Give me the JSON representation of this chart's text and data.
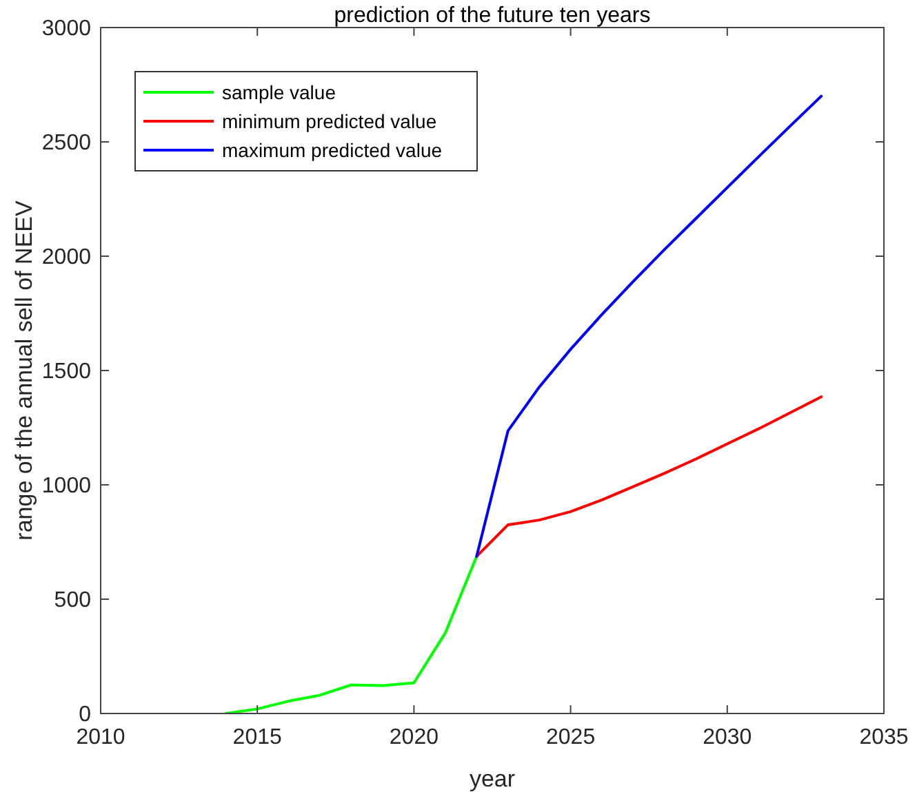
{
  "chart_data": {
    "type": "line",
    "title": "prediction of the future ten years",
    "xlabel": "year",
    "ylabel": "range of the annual sell of NEEV",
    "xlim": [
      2010,
      2035
    ],
    "xticks": [
      2010,
      2015,
      2020,
      2025,
      2030,
      2035
    ],
    "ylim": [
      0,
      3000
    ],
    "yticks": [
      0,
      500,
      1000,
      1500,
      2000,
      2500,
      3000
    ],
    "legend": "top left",
    "grid": false,
    "marker": "none",
    "line_style": "solid",
    "series": [
      {
        "name": "sample value",
        "color": "#00ff00",
        "x": [
          2014,
          2015,
          2016,
          2017,
          2018,
          2019,
          2020,
          2021,
          2022
        ],
        "values": [
          0,
          20,
          54,
          80,
          125,
          122,
          134,
          352,
          687
        ]
      },
      {
        "name": "minimum predicted value",
        "color": "#ff0000",
        "x": [
          2022,
          2023,
          2024,
          2025,
          2026,
          2027,
          2028,
          2029,
          2030,
          2031,
          2032,
          2033
        ],
        "values": [
          687,
          825,
          846,
          883,
          934,
          992,
          1051,
          1113,
          1179,
          1245,
          1315,
          1385
        ]
      },
      {
        "name": "maximum predicted value",
        "color": "#0000ff",
        "x": [
          2022,
          2023,
          2024,
          2025,
          2026,
          2027,
          2028,
          2029,
          2030,
          2031,
          2032,
          2033
        ],
        "values": [
          687,
          1236,
          1428,
          1593,
          1745,
          1890,
          2030,
          2165,
          2300,
          2435,
          2568,
          2700
        ]
      }
    ]
  }
}
